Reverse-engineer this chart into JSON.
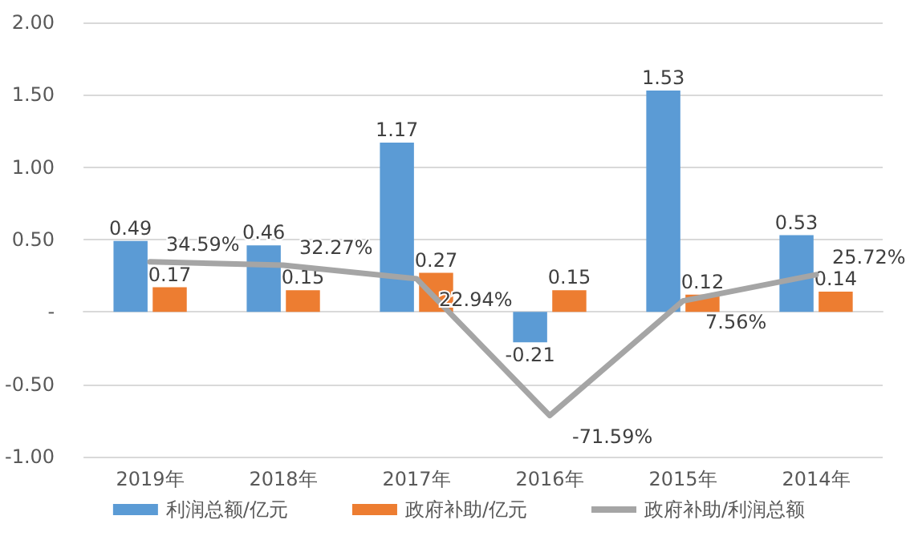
{
  "chart_data": {
    "type": "bar",
    "categories": [
      "2019年",
      "2018年",
      "2017年",
      "2016年",
      "2015年",
      "2014年"
    ],
    "series": [
      {
        "name": "利润总额/亿元",
        "color": "#5b9bd5",
        "values": [
          0.49,
          0.46,
          1.17,
          -0.21,
          1.53,
          0.53
        ]
      },
      {
        "name": "政府补助/亿元",
        "color": "#ed7d31",
        "values": [
          0.17,
          0.15,
          0.27,
          0.15,
          0.12,
          0.14
        ]
      },
      {
        "name": "政府补助/利润总额",
        "type": "line",
        "color": "#a5a5a5",
        "values": [
          0.3459,
          0.3227,
          0.2294,
          -0.7159,
          0.0756,
          0.2572
        ],
        "value_labels": [
          "34.59%",
          "32.27%",
          "22.94%",
          "-71.59%",
          "7.56%",
          "25.72%"
        ]
      }
    ],
    "ylim": [
      -1,
      2
    ],
    "yticks": [
      {
        "value": -1,
        "label": "-1.00"
      },
      {
        "value": -0.5,
        "label": "-0.50"
      },
      {
        "value": 0,
        "label": "-"
      },
      {
        "value": 0.5,
        "label": "0.50"
      },
      {
        "value": 1,
        "label": "1.00"
      },
      {
        "value": 1.5,
        "label": "1.50"
      },
      {
        "value": 2,
        "label": "2.00"
      }
    ],
    "grid": "y",
    "legend": "bottom",
    "data_labels": true,
    "marker": "none",
    "line_style": "solid"
  }
}
